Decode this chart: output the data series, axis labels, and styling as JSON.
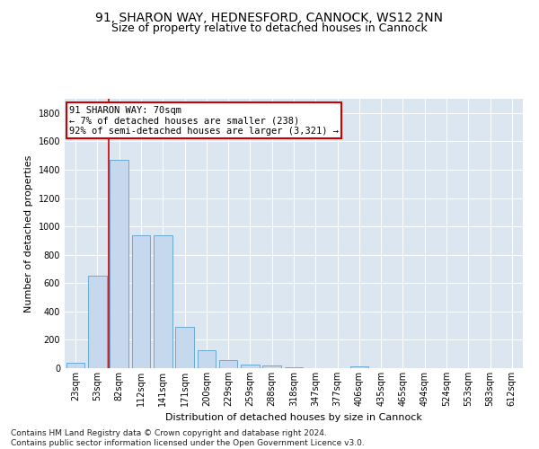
{
  "title1": "91, SHARON WAY, HEDNESFORD, CANNOCK, WS12 2NN",
  "title2": "Size of property relative to detached houses in Cannock",
  "xlabel": "Distribution of detached houses by size in Cannock",
  "ylabel": "Number of detached properties",
  "categories": [
    "23sqm",
    "53sqm",
    "82sqm",
    "112sqm",
    "141sqm",
    "171sqm",
    "200sqm",
    "229sqm",
    "259sqm",
    "288sqm",
    "318sqm",
    "347sqm",
    "377sqm",
    "406sqm",
    "435sqm",
    "465sqm",
    "494sqm",
    "524sqm",
    "553sqm",
    "583sqm",
    "612sqm"
  ],
  "values": [
    38,
    650,
    1470,
    935,
    935,
    290,
    125,
    60,
    23,
    20,
    5,
    0,
    0,
    15,
    0,
    0,
    0,
    0,
    0,
    0,
    0
  ],
  "bar_color": "#c5d8ee",
  "bar_edge_color": "#6aaad4",
  "vline_x": 1.5,
  "annotation_text": "91 SHARON WAY: 70sqm\n← 7% of detached houses are smaller (238)\n92% of semi-detached houses are larger (3,321) →",
  "annotation_box_color": "#ffffff",
  "annotation_box_edge": "#cc0000",
  "vline_color": "#cc0000",
  "ylim": [
    0,
    1900
  ],
  "yticks": [
    0,
    200,
    400,
    600,
    800,
    1000,
    1200,
    1400,
    1600,
    1800
  ],
  "bg_color": "#dce6f0",
  "footnote": "Contains HM Land Registry data © Crown copyright and database right 2024.\nContains public sector information licensed under the Open Government Licence v3.0.",
  "title1_fontsize": 10,
  "title2_fontsize": 9,
  "xlabel_fontsize": 8,
  "ylabel_fontsize": 8,
  "tick_fontsize": 7,
  "annot_fontsize": 7.5,
  "footnote_fontsize": 6.5
}
